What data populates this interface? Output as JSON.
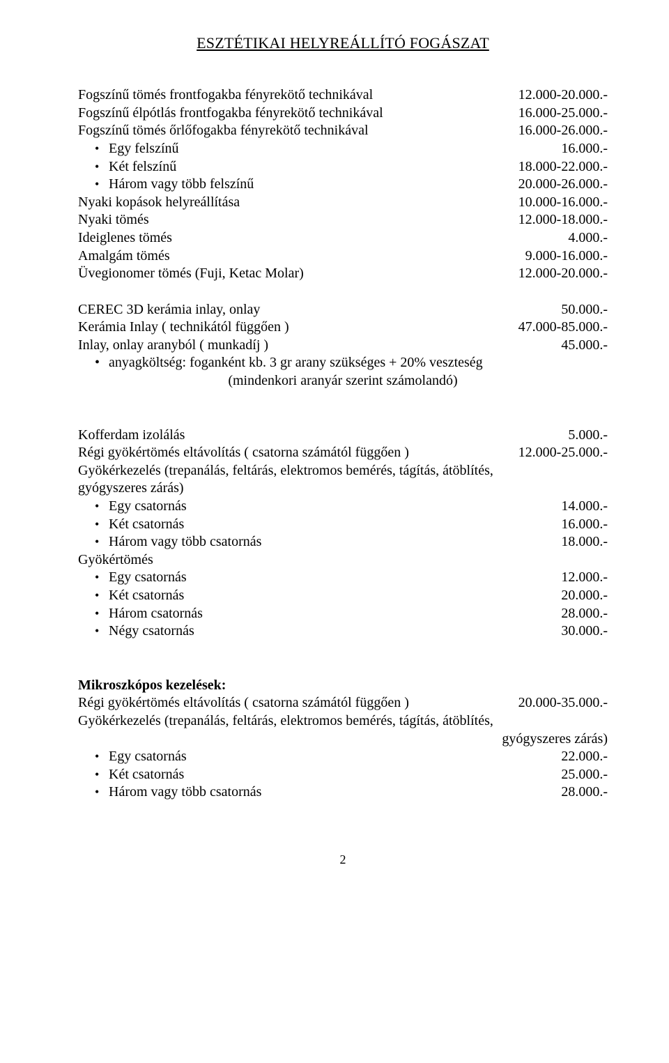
{
  "title": "ESZTÉTIKAI HELYREÁLLÍTÓ FOGÁSZAT",
  "s1": {
    "r1": {
      "label": "Fogszínű tömés frontfogakba fényrekötő technikával",
      "price": "12.000-20.000.-"
    },
    "r2": {
      "label": "Fogszínű élpótlás frontfogakba fényrekötő technikával",
      "price": "16.000-25.000.-"
    },
    "r3": {
      "label": "Fogszínű tömés őrlőfogakba fényrekötő technikával",
      "price": "16.000-26.000.-"
    },
    "b1": {
      "label": "Egy felszínű",
      "price": "16.000.-"
    },
    "b2": {
      "label": "Két felszínű",
      "price": "18.000-22.000.-"
    },
    "b3": {
      "label": "Három vagy több felszínű",
      "price": "20.000-26.000.-"
    },
    "r4": {
      "label": "Nyaki kopások helyreállítása",
      "price": "10.000-16.000.-"
    },
    "r5": {
      "label": "Nyaki tömés",
      "price": "12.000-18.000.-"
    },
    "r6": {
      "label": "Ideiglenes tömés",
      "price": "4.000.-"
    },
    "r7": {
      "label": "Amalgám tömés",
      "price": "9.000-16.000.-"
    },
    "r8": {
      "label": "Üvegionomer tömés (Fuji, Ketac Molar)",
      "price": "12.000-20.000.-"
    }
  },
  "s2": {
    "r1": {
      "label": "CEREC 3D kerámia inlay, onlay",
      "price": "50.000.-"
    },
    "r2": {
      "label": "Kerámia Inlay ( technikától függően )",
      "price": "47.000-85.000.-"
    },
    "r3": {
      "label": "Inlay, onlay aranyból ( munkadíj )",
      "price": "45.000.-"
    },
    "note1": "anyagköltség: foganként kb. 3 gr arany szükséges + 20% veszteség",
    "note2": "(mindenkori aranyár szerint számolandó)"
  },
  "s3": {
    "r1": {
      "label": "Kofferdam izolálás",
      "price": "5.000.-"
    },
    "r2": {
      "label": "Régi gyökértömés eltávolítás ( csatorna számától függően )",
      "price": "12.000-25.000.-"
    },
    "p1": "Gyökérkezelés (trepanálás, feltárás, elektromos bemérés, tágítás, átöblítés,",
    "p2": "gyógyszeres zárás)",
    "b1": {
      "label": "Egy csatornás",
      "price": "14.000.-"
    },
    "b2": {
      "label": "Két csatornás",
      "price": "16.000.-"
    },
    "b3": {
      "label": "Három vagy több csatornás",
      "price": "18.000.-"
    },
    "h2": "Gyökértömés",
    "b4": {
      "label": "Egy csatornás",
      "price": "12.000.-"
    },
    "b5": {
      "label": "Két csatornás",
      "price": "20.000.-"
    },
    "b6": {
      "label": "Három csatornás",
      "price": "28.000.-"
    },
    "b7": {
      "label": "Négy csatornás",
      "price": "30.000.-"
    }
  },
  "s4": {
    "h": "Mikroszkópos kezelések:",
    "r1": {
      "label": "Régi gyökértömés eltávolítás ( csatorna számától függően )",
      "price": "20.000-35.000.-"
    },
    "p1": "Gyökérkezelés (trepanálás, feltárás, elektromos bemérés, tágítás, átöblítés,",
    "p2": "gyógyszeres zárás)",
    "b1": {
      "label": "Egy csatornás",
      "price": "22.000.-"
    },
    "b2": {
      "label": "Két csatornás",
      "price": "25.000.-"
    },
    "b3": {
      "label": "Három vagy több csatornás",
      "price": "28.000.-"
    }
  },
  "pagenum": "2"
}
